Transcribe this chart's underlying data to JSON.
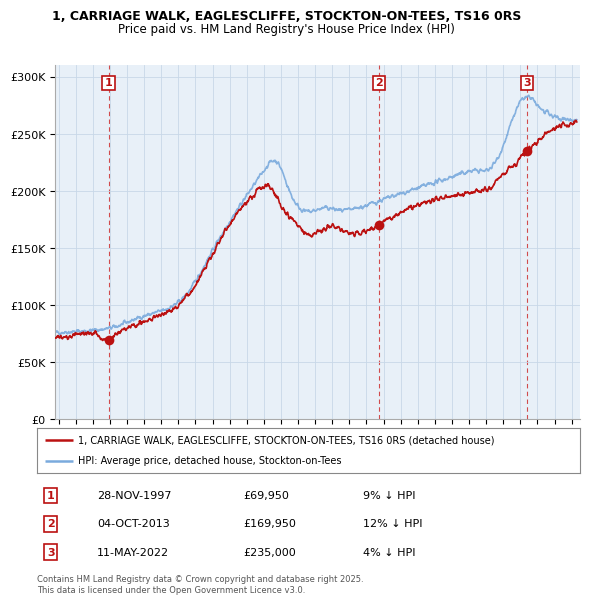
{
  "title_line1": "1, CARRIAGE WALK, EAGLESCLIFFE, STOCKTON-ON-TEES, TS16 0RS",
  "title_line2": "Price paid vs. HM Land Registry's House Price Index (HPI)",
  "ylim": [
    0,
    310000
  ],
  "yticks": [
    0,
    50000,
    100000,
    150000,
    200000,
    250000,
    300000
  ],
  "ytick_labels": [
    "£0",
    "£50K",
    "£100K",
    "£150K",
    "£200K",
    "£250K",
    "£300K"
  ],
  "hpi_color": "#7aaadd",
  "price_color": "#bb1111",
  "dashed_color": "#cc2222",
  "sale_dot_color": "#bb1111",
  "background_color": "#ffffff",
  "chart_bg_color": "#e8f0f8",
  "grid_color": "#c8d8e8",
  "sales": [
    {
      "date_num": 1997.92,
      "price": 69950,
      "label": "1"
    },
    {
      "date_num": 2013.75,
      "price": 169950,
      "label": "2"
    },
    {
      "date_num": 2022.37,
      "price": 235000,
      "label": "3"
    }
  ],
  "sale_table": [
    {
      "num": "1",
      "date": "28-NOV-1997",
      "price": "£69,950",
      "pct": "9% ↓ HPI"
    },
    {
      "num": "2",
      "date": "04-OCT-2013",
      "price": "£169,950",
      "pct": "12% ↓ HPI"
    },
    {
      "num": "3",
      "date": "11-MAY-2022",
      "price": "£235,000",
      "pct": "4% ↓ HPI"
    }
  ],
  "legend_line1": "1, CARRIAGE WALK, EAGLESCLIFFE, STOCKTON-ON-TEES, TS16 0RS (detached house)",
  "legend_line2": "HPI: Average price, detached house, Stockton-on-Tees",
  "footer": "Contains HM Land Registry data © Crown copyright and database right 2025.\nThis data is licensed under the Open Government Licence v3.0.",
  "xmin": 1994.8,
  "xmax": 2025.5
}
